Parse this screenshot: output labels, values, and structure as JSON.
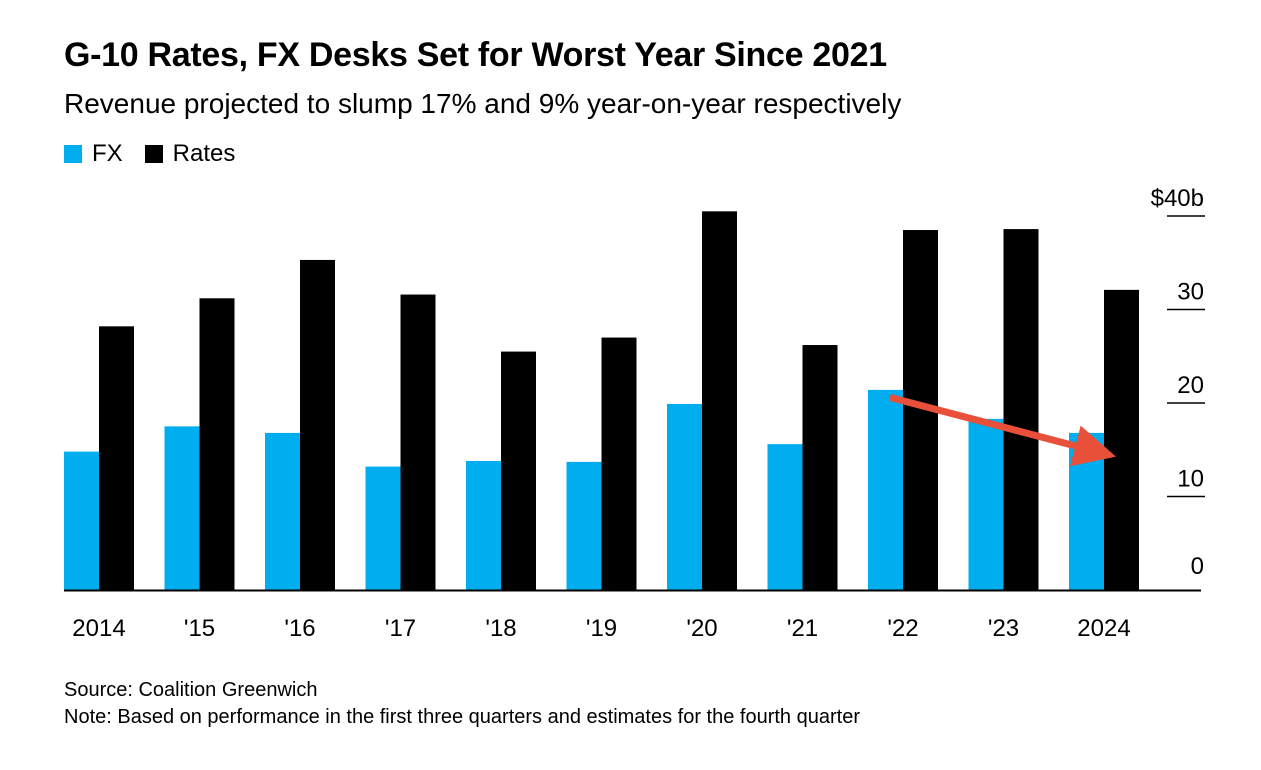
{
  "title": "G-10 Rates, FX Desks Set for Worst Year Since 2021",
  "subtitle": "Revenue projected to slump 17% and 9% year-on-year respectively",
  "source": "Source: Coalition Greenwich",
  "note": "Note: Based on performance in the first three quarters and estimates for the fourth quarter",
  "colors": {
    "fx": "#00adef",
    "rates": "#000000",
    "arrow": "#e8503a"
  },
  "chart_data": {
    "type": "bar",
    "categories": [
      "2014",
      "'15",
      "'16",
      "'17",
      "'18",
      "'19",
      "'20",
      "'21",
      "'22",
      "'23",
      "2024"
    ],
    "series": [
      {
        "name": "FX",
        "color": "#00adef",
        "values": [
          14.8,
          17.5,
          16.8,
          13.2,
          13.8,
          13.7,
          19.9,
          15.6,
          21.4,
          18.3,
          16.8
        ]
      },
      {
        "name": "Rates",
        "color": "#000000",
        "values": [
          28.2,
          31.2,
          35.3,
          31.6,
          25.5,
          27.0,
          40.5,
          26.2,
          38.5,
          38.6,
          32.1
        ]
      }
    ],
    "ylim": [
      0,
      40
    ],
    "yticks": [
      "0",
      "10",
      "20",
      "30",
      "$40b"
    ],
    "ytick_values": [
      0,
      10,
      20,
      30,
      40
    ],
    "y_axis_side": "right",
    "grid": false,
    "legend_position": "top-left",
    "annotation": {
      "type": "arrow",
      "description": "downward trend in FX from '22 to 2024",
      "from": {
        "category": "'22",
        "value": 20.6
      },
      "to": {
        "category": "2024",
        "value": 14.8
      }
    }
  }
}
